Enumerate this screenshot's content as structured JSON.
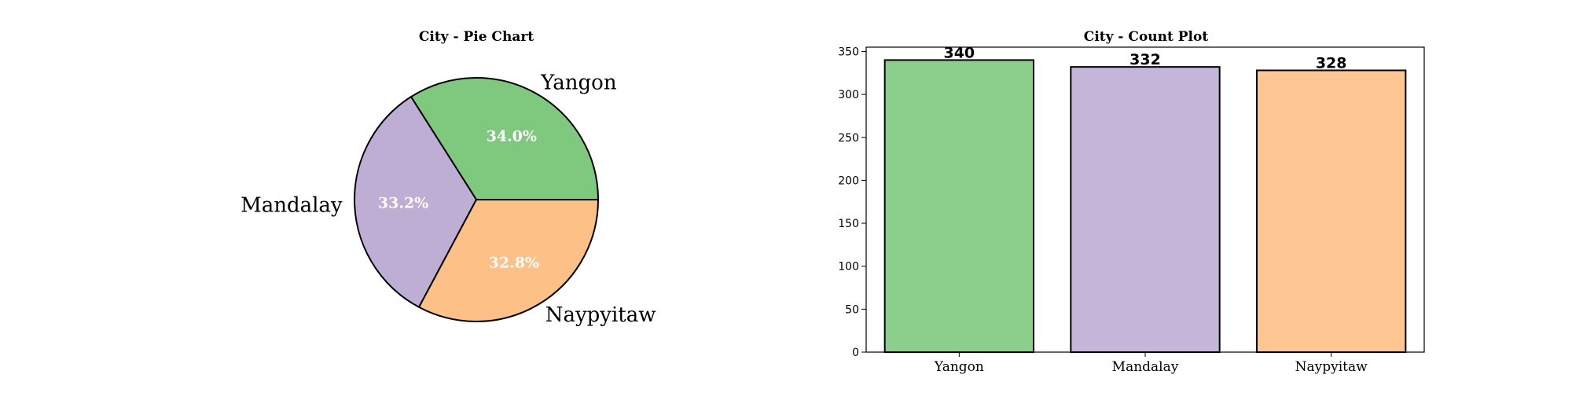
{
  "chart_data": [
    {
      "type": "pie",
      "title": "City - Pie Chart",
      "categories": [
        "Yangon",
        "Mandalay",
        "Naypyitaw"
      ],
      "values": [
        340,
        332,
        328
      ],
      "percent_labels": [
        "34.0%",
        "33.2%",
        "32.8%"
      ],
      "colors": [
        "#7fc97f",
        "#beaed4",
        "#fdc086"
      ],
      "start_angle_deg": 0,
      "direction": "counterclockwise"
    },
    {
      "type": "bar",
      "title": "City - Count Plot",
      "categories": [
        "Yangon",
        "Mandalay",
        "Naypyitaw"
      ],
      "values": [
        340,
        332,
        328
      ],
      "value_labels": [
        "340",
        "332",
        "328"
      ],
      "colors": [
        "#7fc97f",
        "#beaed4",
        "#fdc086"
      ],
      "ylim": [
        0,
        355
      ],
      "yticks": [
        0,
        50,
        100,
        150,
        200,
        250,
        300,
        350
      ],
      "xlabel": "",
      "ylabel": "",
      "grid": false
    }
  ]
}
